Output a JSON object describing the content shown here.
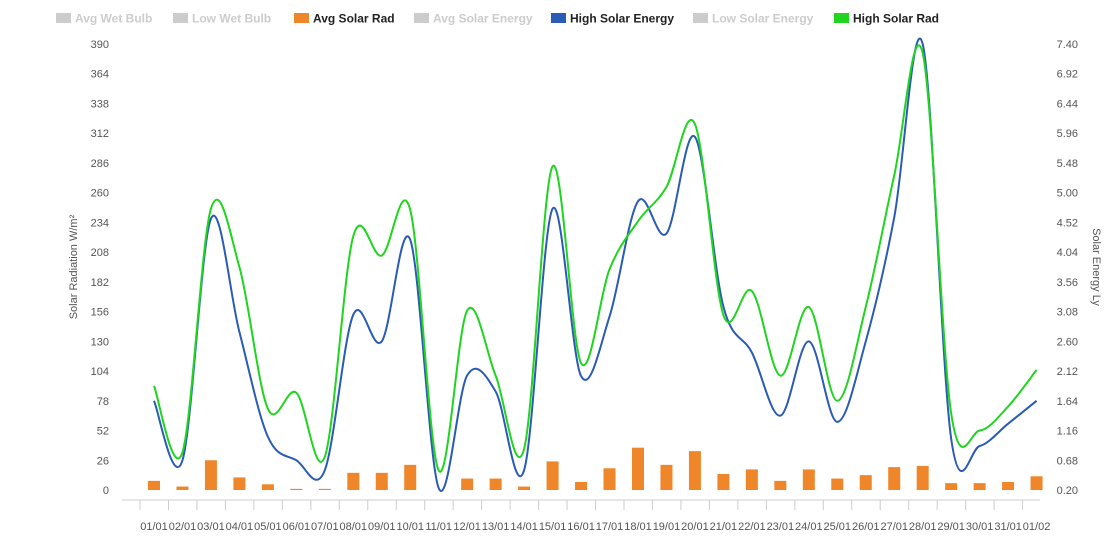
{
  "chart_data": {
    "type": "line",
    "legend_position": "top-left",
    "legend": [
      {
        "name": "Avg Wet Bulb",
        "color": "#cccccc",
        "enabled": false
      },
      {
        "name": "Low Wet Bulb",
        "color": "#cccccc",
        "enabled": false
      },
      {
        "name": "Avg Solar Rad",
        "color": "#f0862a",
        "enabled": true
      },
      {
        "name": "Avg Solar Energy",
        "color": "#cccccc",
        "enabled": false
      },
      {
        "name": "High Solar Energy",
        "color": "#2a5bb5",
        "enabled": true
      },
      {
        "name": "Low Solar Energy",
        "color": "#cccccc",
        "enabled": false
      },
      {
        "name": "High Solar Rad",
        "color": "#1fd51f",
        "enabled": true
      }
    ],
    "categories": [
      "01/01",
      "02/01",
      "03/01",
      "04/01",
      "05/01",
      "06/01",
      "07/01",
      "08/01",
      "09/01",
      "10/01",
      "11/01",
      "12/01",
      "13/01",
      "14/01",
      "15/01",
      "16/01",
      "17/01",
      "18/01",
      "19/01",
      "20/01",
      "21/01",
      "22/01",
      "23/01",
      "24/01",
      "25/01",
      "26/01",
      "27/01",
      "28/01",
      "29/01",
      "30/01",
      "31/01",
      "01/02"
    ],
    "yaxis_left": {
      "title": "Solar Radiation W/m²",
      "min": 0,
      "max": 390,
      "ticks": [
        "390",
        "364",
        "338",
        "312",
        "286",
        "260",
        "234",
        "208",
        "182",
        "156",
        "130",
        "104",
        "78",
        "52",
        "26",
        "0"
      ]
    },
    "yaxis_right": {
      "title": "Solar Energy Ly",
      "min": 0.2,
      "max": 7.4,
      "ticks": [
        "7.40",
        "6.92",
        "6.44",
        "5.96",
        "5.48",
        "5.00",
        "4.52",
        "4.04",
        "3.56",
        "3.08",
        "2.60",
        "2.12",
        "1.64",
        "1.16",
        "0.68",
        "0.20"
      ]
    },
    "grid": false,
    "series": [
      {
        "name": "Avg Solar Rad",
        "type": "bar",
        "axis": "left",
        "color": "#f0862a",
        "values": [
          8,
          3,
          26,
          11,
          5,
          1,
          1,
          15,
          15,
          22,
          0,
          10,
          10,
          3,
          25,
          7,
          19,
          37,
          22,
          34,
          14,
          18,
          8,
          18,
          10,
          13,
          20,
          21,
          6,
          6,
          7,
          12
        ]
      },
      {
        "name": "High Solar Energy",
        "type": "line",
        "axis": "right",
        "color": "#2a5bb5",
        "values": [
          1.64,
          0.68,
          4.58,
          2.75,
          1.06,
          0.68,
          0.52,
          3.03,
          2.6,
          4.24,
          0.23,
          2.05,
          1.79,
          0.52,
          4.74,
          2.04,
          3.0,
          4.86,
          4.34,
          5.9,
          3.16,
          2.42,
          1.4,
          2.6,
          1.3,
          2.6,
          4.6,
          7.4,
          1.03,
          0.91,
          1.27,
          1.64
        ]
      },
      {
        "name": "High Solar Rad",
        "type": "line",
        "axis": "left",
        "color": "#1fd51f",
        "values": [
          91,
          33,
          246,
          195,
          71,
          85,
          29,
          222,
          205,
          245,
          17,
          157,
          100,
          36,
          283,
          111,
          193,
          235,
          265,
          320,
          153,
          174,
          100,
          160,
          78,
          160,
          275,
          382,
          67,
          52,
          73,
          105
        ]
      }
    ]
  }
}
